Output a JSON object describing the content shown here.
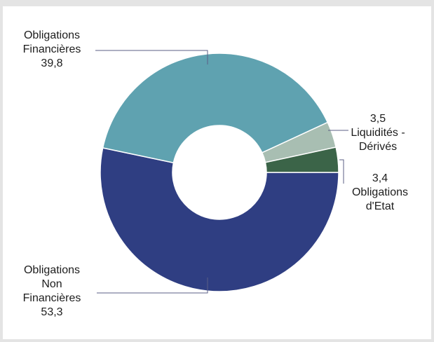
{
  "chart_data": {
    "type": "pie",
    "donut": true,
    "title": "",
    "slices": [
      {
        "label_lines": [
          "Obligations",
          "Non",
          "Financières"
        ],
        "value": 53.3,
        "value_text": "53,3",
        "color": "#2f3e82"
      },
      {
        "label_lines": [
          "Obligations",
          "Financières"
        ],
        "value": 39.8,
        "value_text": "39,8",
        "color": "#5fa2b0"
      },
      {
        "label_lines": [
          "Liquidités -",
          "Dérivés"
        ],
        "value": 3.5,
        "value_text": "3,5",
        "color": "#a8beb2"
      },
      {
        "label_lines": [
          "Obligations",
          "d'Etat"
        ],
        "value": 3.4,
        "value_text": "3,4",
        "color": "#3b6448"
      }
    ],
    "legend": "none",
    "grid": false
  }
}
